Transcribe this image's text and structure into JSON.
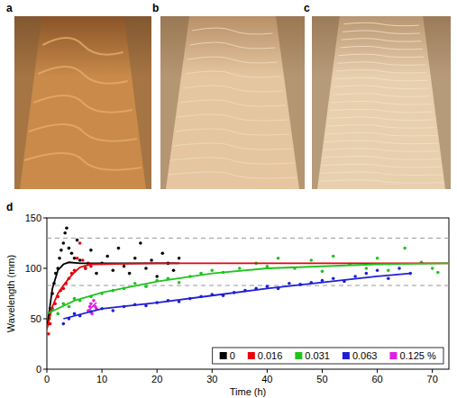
{
  "panels": [
    {
      "label": "a"
    },
    {
      "label": "b"
    },
    {
      "label": "c"
    }
  ],
  "chart_data": {
    "type": "scatter",
    "panel_label": "d",
    "x_label": "Time (h)",
    "y_label": "Wavelength (mm)",
    "xlim": [
      0,
      73
    ],
    "ylim": [
      0,
      150
    ],
    "xticks": [
      0,
      10,
      20,
      30,
      40,
      50,
      60,
      70
    ],
    "yticks": [
      0,
      50,
      100,
      150
    ],
    "hlines": [
      83,
      130
    ],
    "legend": "lower right",
    "marker": "circle",
    "series": [
      {
        "name": "0",
        "color": "#000000",
        "x": [
          0.3,
          0.6,
          1,
          1.3,
          1.6,
          2,
          2.3,
          2.6,
          3,
          3.3,
          3.6,
          4,
          4.5,
          5,
          5.5,
          6,
          7,
          8,
          9,
          10,
          11,
          12,
          13,
          14,
          15,
          16,
          17,
          18,
          19,
          20,
          21,
          22,
          23,
          24
        ],
        "values": [
          45,
          60,
          75,
          85,
          95,
          100,
          110,
          118,
          125,
          135,
          140,
          120,
          115,
          110,
          128,
          108,
          100,
          118,
          95,
          105,
          112,
          98,
          120,
          102,
          95,
          110,
          125,
          100,
          108,
          92,
          115,
          105,
          98,
          110
        ],
        "fit_x": [
          0,
          1,
          2,
          3,
          4,
          6,
          24
        ],
        "fit_values": [
          40,
          80,
          98,
          104,
          106,
          105,
          105
        ]
      },
      {
        "name": "0.016",
        "color": "#e8000b",
        "x": [
          0.3,
          0.6,
          1,
          1.5,
          2,
          2.5,
          3,
          3.5,
          4,
          4.5,
          5,
          5.5,
          6,
          6.5,
          7,
          7.5,
          8
        ],
        "values": [
          35,
          45,
          60,
          65,
          72,
          78,
          80,
          85,
          90,
          95,
          98,
          110,
          125,
          108,
          100,
          105,
          102
        ],
        "fit_x": [
          0,
          1,
          2,
          3,
          4,
          5,
          6,
          8,
          20,
          73
        ],
        "fit_values": [
          40,
          62,
          75,
          83,
          90,
          96,
          101,
          104,
          105,
          105
        ]
      },
      {
        "name": "0.031",
        "color": "#1ec41e",
        "x": [
          0.5,
          1,
          2,
          3,
          4,
          5,
          6,
          8,
          10,
          12,
          14,
          16,
          18,
          20,
          22,
          24,
          26,
          28,
          30,
          32,
          35,
          38,
          40,
          42,
          45,
          48,
          50,
          52,
          55,
          58,
          60,
          62,
          65,
          68,
          70,
          71
        ],
        "values": [
          50,
          60,
          55,
          65,
          62,
          70,
          68,
          72,
          75,
          78,
          80,
          85,
          82,
          88,
          90,
          86,
          92,
          95,
          98,
          96,
          100,
          105,
          102,
          110,
          100,
          108,
          97,
          112,
          104,
          100,
          110,
          98,
          120,
          106,
          100,
          96
        ],
        "fit_x": [
          0,
          5,
          10,
          20,
          30,
          40,
          50,
          60,
          73
        ],
        "fit_values": [
          55,
          68,
          76,
          87,
          95,
          100,
          102,
          104,
          105
        ]
      },
      {
        "name": "0.063",
        "color": "#1f1fd6",
        "x": [
          3,
          4,
          5,
          6,
          8,
          10,
          12,
          14,
          16,
          18,
          20,
          22,
          24,
          26,
          28,
          30,
          32,
          34,
          36,
          38,
          40,
          42,
          44,
          46,
          48,
          50,
          52,
          54,
          56,
          58,
          60,
          62,
          64,
          66
        ],
        "values": [
          45,
          50,
          55,
          53,
          57,
          60,
          58,
          62,
          64,
          63,
          66,
          68,
          67,
          70,
          72,
          74,
          73,
          76,
          78,
          80,
          82,
          80,
          85,
          84,
          86,
          88,
          90,
          87,
          92,
          95,
          98,
          90,
          100,
          95
        ],
        "fit_x": [
          3,
          10,
          20,
          30,
          40,
          50,
          60,
          66
        ],
        "fit_values": [
          50,
          60,
          66,
          73,
          80,
          86,
          92,
          95
        ]
      },
      {
        "name": "0.125 %",
        "color": "#e020e0",
        "x": [
          7.5,
          7.8,
          8,
          8.2,
          8.5,
          8.8,
          9
        ],
        "values": [
          58,
          62,
          65,
          55,
          68,
          62,
          60
        ],
        "fit_x": [
          7.5,
          9
        ],
        "fit_values": [
          58,
          66
        ]
      }
    ]
  }
}
